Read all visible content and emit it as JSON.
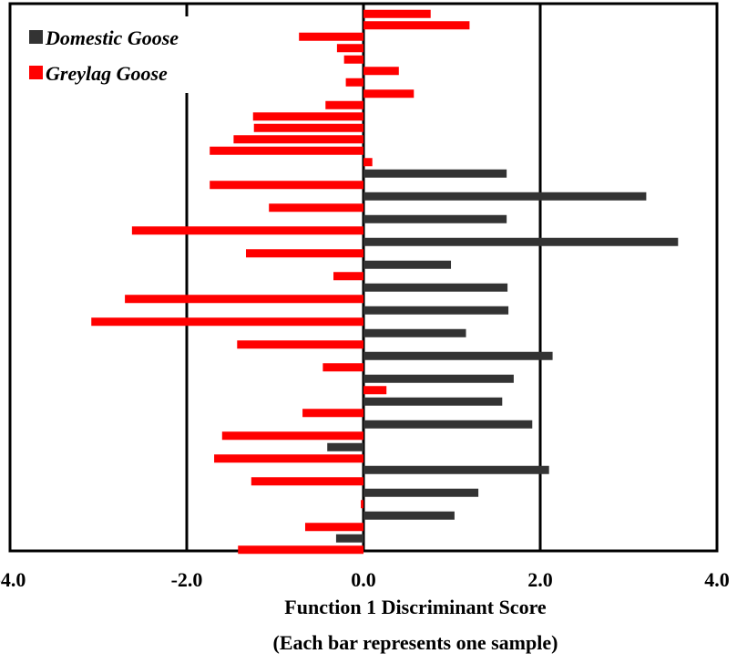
{
  "chart_data": {
    "type": "bar",
    "orientation": "horizontal",
    "xlabel": "Function 1 Discriminant Score",
    "xlabel_note": "(Each bar represents one sample)",
    "xlim": [
      -4.0,
      4.0
    ],
    "x_ticks": [
      "-4.0",
      "-2.0",
      "0.0",
      "2.0",
      "4.0"
    ],
    "x_tick_values": [
      -4.0,
      -2.0,
      0.0,
      2.0,
      4.0
    ],
    "gridlines_at": [
      -2.0,
      0.0,
      2.0
    ],
    "legend_position": "top-left",
    "series": [
      {
        "name": "Domestic Goose",
        "color": "#333333"
      },
      {
        "name": "Greylag Goose",
        "color": "#ff0000"
      }
    ],
    "samples": [
      {
        "series": 1,
        "value": 0.76
      },
      {
        "series": 1,
        "value": 1.2
      },
      {
        "series": 1,
        "value": -0.73
      },
      {
        "series": 1,
        "value": -0.3
      },
      {
        "series": 1,
        "value": -0.22
      },
      {
        "series": 1,
        "value": 0.4
      },
      {
        "series": 1,
        "value": -0.2
      },
      {
        "series": 1,
        "value": 0.57
      },
      {
        "series": 1,
        "value": -0.43
      },
      {
        "series": 1,
        "value": -1.25
      },
      {
        "series": 1,
        "value": -1.24
      },
      {
        "series": 1,
        "value": -1.47
      },
      {
        "series": 1,
        "value": -1.74
      },
      {
        "series": 1,
        "value": 0.1
      },
      {
        "series": 0,
        "value": 1.62
      },
      {
        "series": 1,
        "value": -1.74
      },
      {
        "series": 0,
        "value": 3.2
      },
      {
        "series": 1,
        "value": -1.07
      },
      {
        "series": 0,
        "value": 1.62
      },
      {
        "series": 1,
        "value": -2.62
      },
      {
        "series": 0,
        "value": 3.56
      },
      {
        "series": 1,
        "value": -1.33
      },
      {
        "series": 0,
        "value": 0.99
      },
      {
        "series": 1,
        "value": -0.34
      },
      {
        "series": 0,
        "value": 1.63
      },
      {
        "series": 1,
        "value": -2.7
      },
      {
        "series": 0,
        "value": 1.64
      },
      {
        "series": 1,
        "value": -3.08
      },
      {
        "series": 0,
        "value": 1.16
      },
      {
        "series": 1,
        "value": -1.43
      },
      {
        "series": 0,
        "value": 2.14
      },
      {
        "series": 1,
        "value": -0.46
      },
      {
        "series": 0,
        "value": 1.7
      },
      {
        "series": 1,
        "value": 0.26
      },
      {
        "series": 0,
        "value": 1.57
      },
      {
        "series": 1,
        "value": -0.69
      },
      {
        "series": 0,
        "value": 1.91
      },
      {
        "series": 1,
        "value": -1.6
      },
      {
        "series": 0,
        "value": -0.41
      },
      {
        "series": 1,
        "value": -1.69
      },
      {
        "series": 0,
        "value": 2.1
      },
      {
        "series": 1,
        "value": -1.27
      },
      {
        "series": 0,
        "value": 1.3
      },
      {
        "series": 1,
        "value": -0.03
      },
      {
        "series": 0,
        "value": 1.03
      },
      {
        "series": 1,
        "value": -0.66
      },
      {
        "series": 0,
        "value": -0.31
      },
      {
        "series": 1,
        "value": -1.42
      }
    ]
  }
}
